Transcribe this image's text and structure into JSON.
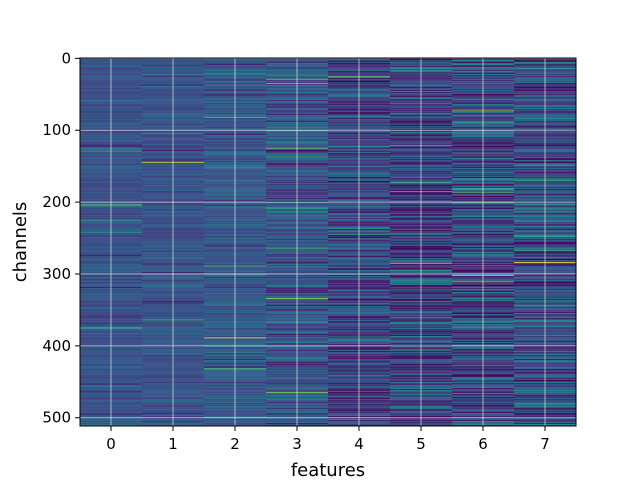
{
  "chart_data": {
    "type": "heatmap",
    "title": "",
    "xlabel": "features",
    "ylabel": "channels",
    "x_ticks": [
      "0",
      "1",
      "2",
      "3",
      "4",
      "5",
      "6",
      "7"
    ],
    "y_ticks": [
      "0",
      "100",
      "200",
      "300",
      "400",
      "500"
    ],
    "n_features": 8,
    "n_channels": 512,
    "xlim": [
      -0.5,
      7.5
    ],
    "ylim": [
      511.5,
      -0.5
    ],
    "grid": true,
    "colormap": "viridis",
    "value_range": [
      0,
      1
    ],
    "column_profiles": [
      {
        "feature": 0,
        "mean": 0.26,
        "spread": 0.05
      },
      {
        "feature": 1,
        "mean": 0.26,
        "spread": 0.05
      },
      {
        "feature": 2,
        "mean": 0.29,
        "spread": 0.07
      },
      {
        "feature": 3,
        "mean": 0.27,
        "spread": 0.09
      },
      {
        "feature": 4,
        "mean": 0.23,
        "spread": 0.12
      },
      {
        "feature": 5,
        "mean": 0.21,
        "spread": 0.14
      },
      {
        "feature": 6,
        "mean": 0.22,
        "spread": 0.15
      },
      {
        "feature": 7,
        "mean": 0.25,
        "spread": 0.14
      }
    ]
  }
}
